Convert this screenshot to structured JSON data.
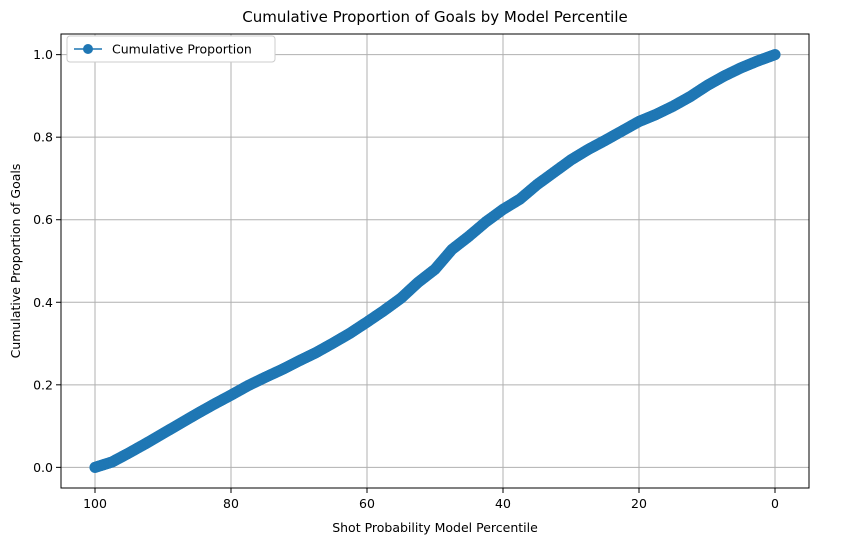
{
  "chart_data": {
    "type": "line",
    "title": "Cumulative Proportion of Goals by Model Percentile",
    "xlabel": "Shot Probability Model Percentile",
    "ylabel": "Cumulative Proportion of Goals",
    "xlim": [
      105,
      -5
    ],
    "ylim": [
      -0.05,
      1.05
    ],
    "x_inverted": true,
    "grid": true,
    "legend_position": "top-left",
    "xticks": [
      100,
      80,
      60,
      40,
      20,
      0
    ],
    "yticks": [
      0.0,
      0.2,
      0.4,
      0.6,
      0.8,
      1.0
    ],
    "xtick_labels": [
      "100",
      "80",
      "60",
      "40",
      "20",
      "0"
    ],
    "ytick_labels": [
      "0.0",
      "0.2",
      "0.4",
      "0.6",
      "0.8",
      "1.0"
    ],
    "series": [
      {
        "name": "Cumulative Proportion",
        "color": "#1f77b4",
        "marker": "circle",
        "x": [
          100,
          97.5,
          95,
          92.5,
          90,
          87.5,
          85,
          82.5,
          80,
          77.5,
          75,
          72.5,
          70,
          67.5,
          65,
          62.5,
          60,
          57.5,
          55,
          52.5,
          50,
          47.5,
          45,
          42.5,
          40,
          37.5,
          35,
          32.5,
          30,
          27.5,
          25,
          22.5,
          20,
          17.5,
          15,
          12.5,
          10,
          7.5,
          5,
          2.5,
          0
        ],
        "y": [
          0.0,
          0.013,
          0.035,
          0.058,
          0.082,
          0.106,
          0.13,
          0.153,
          0.175,
          0.198,
          0.218,
          0.237,
          0.258,
          0.278,
          0.301,
          0.325,
          0.352,
          0.38,
          0.41,
          0.448,
          0.48,
          0.528,
          0.56,
          0.595,
          0.625,
          0.65,
          0.685,
          0.715,
          0.745,
          0.77,
          0.792,
          0.815,
          0.838,
          0.855,
          0.875,
          0.898,
          0.925,
          0.948,
          0.968,
          0.985,
          1.0
        ]
      }
    ]
  }
}
